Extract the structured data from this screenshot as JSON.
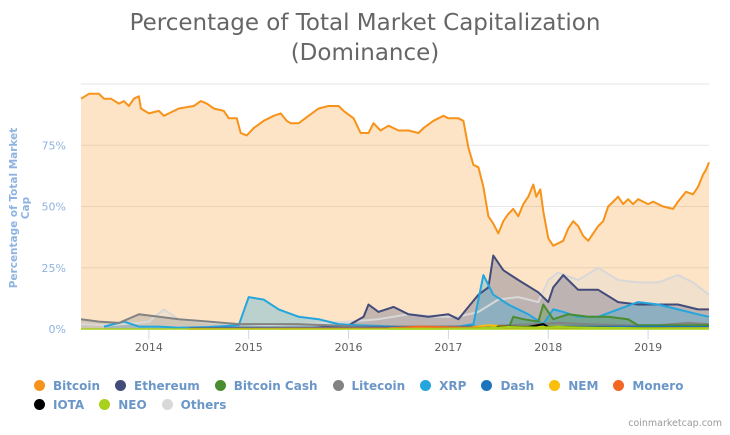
{
  "chart_data": {
    "type": "area",
    "title": "Percentage of Total Market Capitalization",
    "subtitle": "(Dominance)",
    "xlabel": "",
    "ylabel": "Percentage of Total Market Cap",
    "xlim": [
      2013.32,
      2019.61
    ],
    "ylim": [
      0,
      100
    ],
    "x_ticks": [
      "2014",
      "2015",
      "2016",
      "2017",
      "2018",
      "2019"
    ],
    "y_ticks": [
      "0%",
      "25%",
      "50%",
      "75%"
    ],
    "grid": true,
    "legend_position": "bottom",
    "series": [
      {
        "name": "Others",
        "color": "#d8d8d8",
        "points": [
          [
            2013.32,
            2
          ],
          [
            2013.6,
            1.5
          ],
          [
            2013.9,
            2.5
          ],
          [
            2014.0,
            3
          ],
          [
            2014.15,
            8
          ],
          [
            2014.3,
            4
          ],
          [
            2014.6,
            2.5
          ],
          [
            2014.9,
            2
          ],
          [
            2015.2,
            1.5
          ],
          [
            2015.5,
            2
          ],
          [
            2015.8,
            2.5
          ],
          [
            2016.0,
            3
          ],
          [
            2016.3,
            4
          ],
          [
            2016.6,
            6
          ],
          [
            2016.9,
            5
          ],
          [
            2017.1,
            5
          ],
          [
            2017.3,
            7
          ],
          [
            2017.5,
            12
          ],
          [
            2017.7,
            13
          ],
          [
            2017.9,
            11
          ],
          [
            2018.0,
            20
          ],
          [
            2018.1,
            23
          ],
          [
            2018.3,
            20
          ],
          [
            2018.5,
            25
          ],
          [
            2018.7,
            20
          ],
          [
            2018.9,
            19
          ],
          [
            2019.1,
            19
          ],
          [
            2019.3,
            22
          ],
          [
            2019.45,
            19
          ],
          [
            2019.61,
            14
          ]
        ]
      },
      {
        "name": "Ethereum",
        "color": "#434b7a",
        "points": [
          [
            2015.6,
            0.3
          ],
          [
            2015.8,
            1
          ],
          [
            2016.0,
            1.5
          ],
          [
            2016.15,
            5
          ],
          [
            2016.2,
            10
          ],
          [
            2016.3,
            7
          ],
          [
            2016.45,
            9
          ],
          [
            2016.6,
            6
          ],
          [
            2016.8,
            5
          ],
          [
            2017.0,
            6
          ],
          [
            2017.1,
            4
          ],
          [
            2017.2,
            9
          ],
          [
            2017.3,
            14
          ],
          [
            2017.4,
            17
          ],
          [
            2017.45,
            30
          ],
          [
            2017.55,
            24
          ],
          [
            2017.7,
            20
          ],
          [
            2017.9,
            15
          ],
          [
            2018.0,
            11
          ],
          [
            2018.05,
            17
          ],
          [
            2018.15,
            22
          ],
          [
            2018.3,
            16
          ],
          [
            2018.5,
            16
          ],
          [
            2018.7,
            11
          ],
          [
            2018.9,
            10
          ],
          [
            2019.1,
            10
          ],
          [
            2019.3,
            10
          ],
          [
            2019.5,
            8
          ],
          [
            2019.61,
            8
          ]
        ]
      },
      {
        "name": "XRP",
        "color": "#23a6dd",
        "points": [
          [
            2013.55,
            1
          ],
          [
            2013.75,
            3
          ],
          [
            2013.9,
            1
          ],
          [
            2014.1,
            1
          ],
          [
            2014.3,
            0.5
          ],
          [
            2014.6,
            0.8
          ],
          [
            2014.9,
            1.5
          ],
          [
            2015.0,
            13
          ],
          [
            2015.15,
            12
          ],
          [
            2015.3,
            8
          ],
          [
            2015.5,
            5
          ],
          [
            2015.7,
            4
          ],
          [
            2015.9,
            2
          ],
          [
            2016.1,
            1.5
          ],
          [
            2016.5,
            1
          ],
          [
            2016.9,
            1
          ],
          [
            2017.1,
            1
          ],
          [
            2017.25,
            2
          ],
          [
            2017.35,
            22
          ],
          [
            2017.45,
            14
          ],
          [
            2017.6,
            10
          ],
          [
            2017.8,
            6
          ],
          [
            2017.95,
            2
          ],
          [
            2018.05,
            8
          ],
          [
            2018.15,
            7
          ],
          [
            2018.3,
            5
          ],
          [
            2018.5,
            5
          ],
          [
            2018.7,
            8
          ],
          [
            2018.9,
            11
          ],
          [
            2019.1,
            10
          ],
          [
            2019.3,
            8
          ],
          [
            2019.5,
            6
          ],
          [
            2019.61,
            5
          ]
        ]
      },
      {
        "name": "Litecoin",
        "color": "#838383",
        "points": [
          [
            2013.32,
            4
          ],
          [
            2013.5,
            3
          ],
          [
            2013.7,
            2.5
          ],
          [
            2013.9,
            6
          ],
          [
            2014.1,
            5
          ],
          [
            2014.3,
            4
          ],
          [
            2014.6,
            3
          ],
          [
            2014.9,
            2
          ],
          [
            2015.2,
            2
          ],
          [
            2015.5,
            2
          ],
          [
            2015.8,
            1.5
          ],
          [
            2016.1,
            1
          ],
          [
            2016.6,
            1
          ],
          [
            2017.0,
            1
          ],
          [
            2017.3,
            1
          ],
          [
            2017.6,
            1.5
          ],
          [
            2017.9,
            2
          ],
          [
            2018.1,
            2.5
          ],
          [
            2018.4,
            2
          ],
          [
            2018.8,
            1.5
          ],
          [
            2019.1,
            1.5
          ],
          [
            2019.4,
            2.5
          ],
          [
            2019.61,
            2
          ]
        ]
      },
      {
        "name": "Bitcoin Cash",
        "color": "#4a8c30",
        "points": [
          [
            2017.6,
            0
          ],
          [
            2017.65,
            5
          ],
          [
            2017.75,
            4
          ],
          [
            2017.9,
            3
          ],
          [
            2017.95,
            10
          ],
          [
            2018.05,
            4
          ],
          [
            2018.2,
            6
          ],
          [
            2018.4,
            5
          ],
          [
            2018.6,
            5
          ],
          [
            2018.8,
            4
          ],
          [
            2018.9,
            1.5
          ],
          [
            2019.1,
            1.5
          ],
          [
            2019.4,
            1.5
          ],
          [
            2019.61,
            1.5
          ]
        ]
      },
      {
        "name": "Dash",
        "color": "#1c75bc",
        "points": [
          [
            2014.4,
            0.3
          ],
          [
            2014.8,
            0.5
          ],
          [
            2015.2,
            0.5
          ],
          [
            2015.6,
            0.5
          ],
          [
            2016.0,
            0.5
          ],
          [
            2016.5,
            0.8
          ],
          [
            2016.9,
            0.8
          ],
          [
            2017.2,
            1
          ],
          [
            2017.6,
            1
          ],
          [
            2017.9,
            1
          ],
          [
            2018.2,
            1
          ],
          [
            2018.6,
            1
          ],
          [
            2019.0,
            1
          ],
          [
            2019.61,
            0.8
          ]
        ]
      },
      {
        "name": "NEM",
        "color": "#fbbf0b",
        "points": [
          [
            2015.3,
            0.1
          ],
          [
            2016.5,
            0.2
          ],
          [
            2017.2,
            0.5
          ],
          [
            2017.4,
            1.5
          ],
          [
            2017.6,
            1
          ],
          [
            2017.9,
            0.8
          ],
          [
            2018.1,
            1
          ],
          [
            2018.4,
            0.5
          ],
          [
            2018.9,
            0.3
          ],
          [
            2019.61,
            0.2
          ]
        ]
      },
      {
        "name": "Monero",
        "color": "#f26822",
        "points": [
          [
            2014.4,
            0.1
          ],
          [
            2016.4,
            0.3
          ],
          [
            2016.7,
            1
          ],
          [
            2016.9,
            0.8
          ],
          [
            2017.3,
            0.5
          ],
          [
            2017.7,
            0.5
          ],
          [
            2018.1,
            0.5
          ],
          [
            2018.6,
            0.4
          ],
          [
            2019.0,
            0.3
          ],
          [
            2019.61,
            0.3
          ]
        ]
      },
      {
        "name": "IOTA",
        "color": "#000000",
        "points": [
          [
            2017.45,
            0.2
          ],
          [
            2017.5,
            1
          ],
          [
            2017.8,
            0.8
          ],
          [
            2017.95,
            2
          ],
          [
            2018.0,
            0.8
          ],
          [
            2018.3,
            0.7
          ],
          [
            2018.7,
            0.4
          ],
          [
            2019.0,
            0.3
          ],
          [
            2019.61,
            0.2
          ]
        ]
      },
      {
        "name": "NEO",
        "color": "#a7d11a",
        "points": [
          [
            2016.4,
            0.1
          ],
          [
            2016.9,
            0.1
          ],
          [
            2017.3,
            0.3
          ],
          [
            2017.6,
            0.8
          ],
          [
            2017.9,
            0.6
          ],
          [
            2018.1,
            0.8
          ],
          [
            2018.5,
            0.5
          ],
          [
            2019.0,
            0.3
          ],
          [
            2019.61,
            0.3
          ]
        ]
      },
      {
        "name": "Bitcoin",
        "color": "#f7931a",
        "points": [
          [
            2013.32,
            94
          ],
          [
            2013.4,
            96
          ],
          [
            2013.5,
            96
          ],
          [
            2013.55,
            94
          ],
          [
            2013.62,
            94
          ],
          [
            2013.7,
            92
          ],
          [
            2013.75,
            93
          ],
          [
            2013.8,
            91
          ],
          [
            2013.85,
            94
          ],
          [
            2013.9,
            95
          ],
          [
            2013.92,
            90
          ],
          [
            2014.0,
            88
          ],
          [
            2014.1,
            89
          ],
          [
            2014.15,
            87
          ],
          [
            2014.2,
            88
          ],
          [
            2014.3,
            90
          ],
          [
            2014.45,
            91
          ],
          [
            2014.52,
            93
          ],
          [
            2014.58,
            92
          ],
          [
            2014.65,
            90
          ],
          [
            2014.75,
            89
          ],
          [
            2014.8,
            86
          ],
          [
            2014.88,
            86
          ],
          [
            2014.92,
            80
          ],
          [
            2014.98,
            79
          ],
          [
            2015.05,
            82
          ],
          [
            2015.15,
            85
          ],
          [
            2015.25,
            87
          ],
          [
            2015.32,
            88
          ],
          [
            2015.38,
            85
          ],
          [
            2015.42,
            84
          ],
          [
            2015.5,
            84
          ],
          [
            2015.6,
            87
          ],
          [
            2015.7,
            90
          ],
          [
            2015.8,
            91
          ],
          [
            2015.9,
            91
          ],
          [
            2015.95,
            89
          ],
          [
            2016.05,
            86
          ],
          [
            2016.12,
            80
          ],
          [
            2016.2,
            80
          ],
          [
            2016.25,
            84
          ],
          [
            2016.32,
            81
          ],
          [
            2016.4,
            83
          ],
          [
            2016.5,
            81
          ],
          [
            2016.6,
            81
          ],
          [
            2016.7,
            80
          ],
          [
            2016.75,
            82
          ],
          [
            2016.85,
            85
          ],
          [
            2016.95,
            87
          ],
          [
            2017.0,
            86
          ],
          [
            2017.1,
            86
          ],
          [
            2017.15,
            85
          ],
          [
            2017.2,
            74
          ],
          [
            2017.25,
            67
          ],
          [
            2017.3,
            66
          ],
          [
            2017.35,
            58
          ],
          [
            2017.4,
            46
          ],
          [
            2017.45,
            43
          ],
          [
            2017.5,
            39
          ],
          [
            2017.55,
            44
          ],
          [
            2017.6,
            47
          ],
          [
            2017.65,
            49
          ],
          [
            2017.7,
            46
          ],
          [
            2017.75,
            51
          ],
          [
            2017.8,
            54
          ],
          [
            2017.85,
            59
          ],
          [
            2017.88,
            54
          ],
          [
            2017.92,
            57
          ],
          [
            2017.95,
            48
          ],
          [
            2018.0,
            37
          ],
          [
            2018.05,
            34
          ],
          [
            2018.1,
            35
          ],
          [
            2018.15,
            36
          ],
          [
            2018.2,
            41
          ],
          [
            2018.25,
            44
          ],
          [
            2018.3,
            42
          ],
          [
            2018.35,
            38
          ],
          [
            2018.4,
            36
          ],
          [
            2018.45,
            39
          ],
          [
            2018.5,
            42
          ],
          [
            2018.55,
            44
          ],
          [
            2018.6,
            50
          ],
          [
            2018.65,
            52
          ],
          [
            2018.7,
            54
          ],
          [
            2018.75,
            51
          ],
          [
            2018.8,
            53
          ],
          [
            2018.85,
            51
          ],
          [
            2018.9,
            53
          ],
          [
            2018.95,
            52
          ],
          [
            2019.0,
            51
          ],
          [
            2019.05,
            52
          ],
          [
            2019.15,
            50
          ],
          [
            2019.25,
            49
          ],
          [
            2019.3,
            52
          ],
          [
            2019.38,
            56
          ],
          [
            2019.45,
            55
          ],
          [
            2019.5,
            58
          ],
          [
            2019.55,
            63
          ],
          [
            2019.58,
            65
          ],
          [
            2019.61,
            68
          ]
        ]
      }
    ],
    "legend": [
      "Bitcoin",
      "Ethereum",
      "Bitcoin Cash",
      "Litecoin",
      "XRP",
      "Dash",
      "NEM",
      "Monero",
      "IOTA",
      "NEO",
      "Others"
    ]
  },
  "legend_colors": {
    "Bitcoin": "#f7931a",
    "Ethereum": "#434b7a",
    "Bitcoin Cash": "#4a8c30",
    "Litecoin": "#838383",
    "XRP": "#23a6dd",
    "Dash": "#1c75bc",
    "NEM": "#fbbf0b",
    "Monero": "#f26822",
    "IOTA": "#000000",
    "NEO": "#a7d11a",
    "Others": "#d8d8d8"
  },
  "credit": "coinmarketcap.com"
}
